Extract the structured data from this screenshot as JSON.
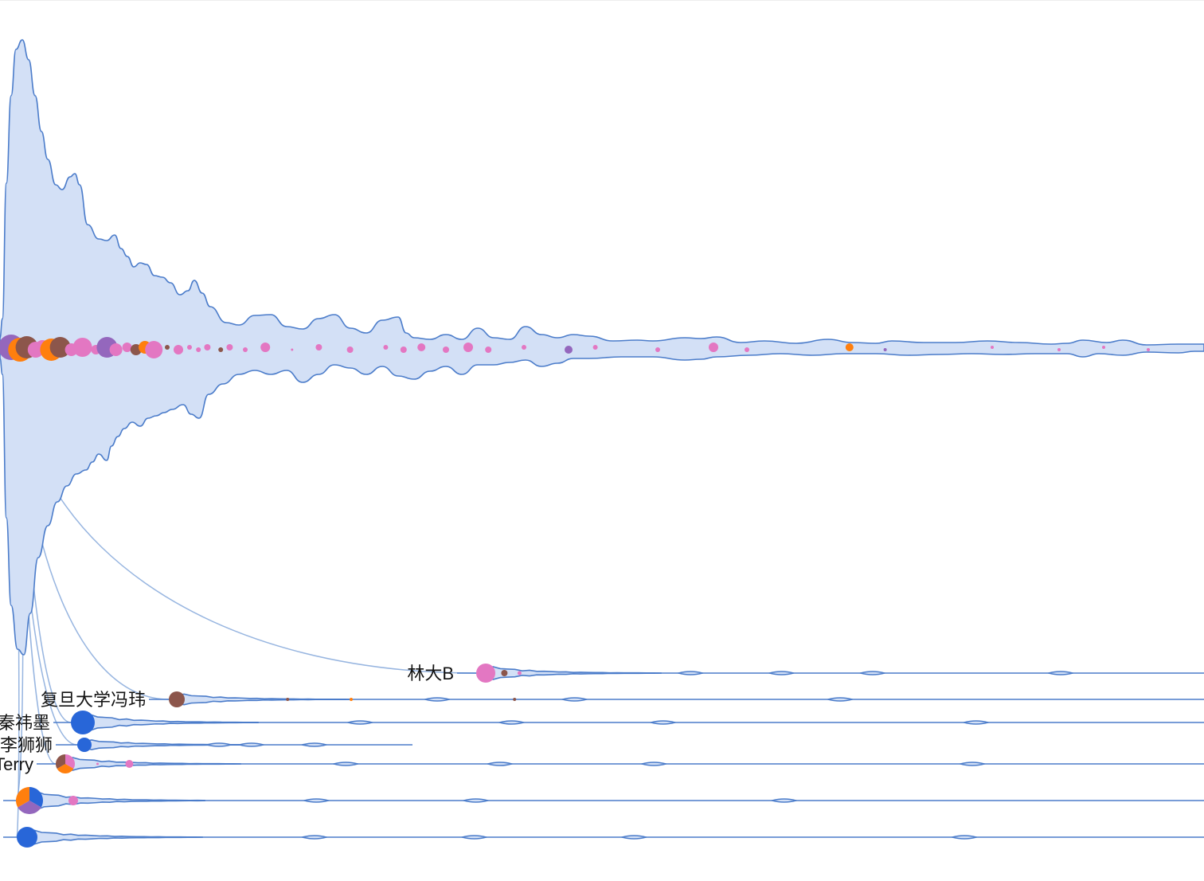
{
  "chart_data": {
    "type": "area",
    "description_free": true,
    "colors": {
      "stream_fill": "#d3e0f6",
      "stream_stroke": "#4b7cca",
      "link": "#7da2d8",
      "blue": "#2866d8",
      "pink": "#e377c2",
      "orange": "#ff7f0e",
      "brown": "#8c564b",
      "purple": "#9467bd"
    },
    "main_stream": {
      "dots": [
        {
          "t": 0,
          "r": 16,
          "c": "purple"
        },
        {
          "t": 4,
          "r": 15,
          "c": "orange"
        },
        {
          "t": 7,
          "r": 14,
          "c": "brown"
        },
        {
          "t": 11,
          "r": 10,
          "c": "pink"
        },
        {
          "t": 14,
          "r": 9,
          "c": "pink"
        },
        {
          "t": 18,
          "r": 14,
          "c": "orange"
        },
        {
          "t": 22,
          "r": 13,
          "c": "brown"
        },
        {
          "t": 27,
          "r": 8,
          "c": "pink"
        },
        {
          "t": 32,
          "r": 12,
          "c": "pink"
        },
        {
          "t": 38,
          "r": 6,
          "c": "pink"
        },
        {
          "t": 43,
          "r": 13,
          "c": "purple"
        },
        {
          "t": 47,
          "r": 8,
          "c": "pink"
        },
        {
          "t": 52,
          "r": 6,
          "c": "pink"
        },
        {
          "t": 56,
          "r": 7,
          "c": "brown"
        },
        {
          "t": 60,
          "r": 8,
          "c": "orange"
        },
        {
          "t": 64,
          "r": 11,
          "c": "pink"
        },
        {
          "t": 70,
          "r": 3,
          "c": "brown"
        },
        {
          "t": 75,
          "r": 6,
          "c": "pink"
        },
        {
          "t": 80,
          "r": 3,
          "c": "pink"
        },
        {
          "t": 84,
          "r": 3,
          "c": "pink"
        },
        {
          "t": 88,
          "r": 4,
          "c": "pink"
        },
        {
          "t": 94,
          "r": 3,
          "c": "brown"
        },
        {
          "t": 98,
          "r": 4,
          "c": "pink"
        },
        {
          "t": 105,
          "r": 3,
          "c": "pink"
        },
        {
          "t": 114,
          "r": 6,
          "c": "pink"
        },
        {
          "t": 126,
          "r": 1.5,
          "c": "pink"
        },
        {
          "t": 138,
          "r": 4,
          "c": "pink"
        },
        {
          "t": 152,
          "r": 4,
          "c": "pink"
        },
        {
          "t": 168,
          "r": 3,
          "c": "pink"
        },
        {
          "t": 176,
          "r": 4,
          "c": "pink"
        },
        {
          "t": 184,
          "r": 5,
          "c": "pink"
        },
        {
          "t": 195,
          "r": 4,
          "c": "pink"
        },
        {
          "t": 205,
          "r": 6,
          "c": "pink"
        },
        {
          "t": 214,
          "r": 4,
          "c": "pink"
        },
        {
          "t": 230,
          "r": 3,
          "c": "pink"
        },
        {
          "t": 250,
          "r": 5,
          "c": "purple"
        },
        {
          "t": 262,
          "r": 3,
          "c": "pink"
        },
        {
          "t": 290,
          "r": 3,
          "c": "pink"
        },
        {
          "t": 315,
          "r": 6,
          "c": "pink"
        },
        {
          "t": 330,
          "r": 3,
          "c": "pink"
        },
        {
          "t": 376,
          "r": 5,
          "c": "orange"
        },
        {
          "t": 392,
          "r": 2,
          "c": "purple"
        },
        {
          "t": 440,
          "r": 2,
          "c": "pink"
        },
        {
          "t": 470,
          "r": 2,
          "c": "pink"
        },
        {
          "t": 490,
          "r": 2,
          "c": "pink"
        },
        {
          "t": 510,
          "r": 2,
          "c": "pink"
        }
      ]
    },
    "sub_streams": [
      {
        "label": "林大B",
        "start_t": 230,
        "end_t": 540,
        "node_r": 12,
        "node_colors": [
          "pink"
        ],
        "dots": [
          {
            "t": 236,
            "r": 4,
            "c": "brown"
          },
          {
            "t": 246,
            "r": 2.5,
            "c": "pink"
          }
        ]
      },
      {
        "label": "复旦大学冯玮",
        "start_t": 78,
        "end_t": 540,
        "node_r": 10,
        "node_colors": [
          "brown"
        ],
        "dots": [
          {
            "t": 146,
            "r": 2,
            "c": "brown"
          },
          {
            "t": 188,
            "r": 2,
            "c": "orange"
          },
          {
            "t": 296,
            "r": 2,
            "c": "brown"
          }
        ]
      },
      {
        "label": "秦祎墨",
        "start_t": 36,
        "end_t": 535,
        "node_r": 15,
        "node_colors": [
          "blue"
        ],
        "dots": []
      },
      {
        "label": "李狮狮",
        "start_t": 37,
        "end_t": 180,
        "node_r": 9,
        "node_colors": [
          "blue"
        ],
        "dots": []
      },
      {
        "label": "Terry",
        "start_t": 29,
        "end_t": 540,
        "node_r": 12,
        "node_colors": [
          "pink",
          "orange",
          "brown"
        ],
        "dots": [
          {
            "t": 65,
            "r": 5,
            "c": "pink"
          },
          {
            "t": 44,
            "r": 1.5,
            "c": "pink"
          }
        ]
      },
      {
        "label": "",
        "start_t": 12,
        "end_t": 540,
        "node_r": 17,
        "node_colors": [
          "blue",
          "purple",
          "orange"
        ],
        "dots": [
          {
            "t": 32,
            "r": 6,
            "c": "pink"
          }
        ]
      },
      {
        "label": "",
        "start_t": 12,
        "end_t": 540,
        "node_r": 13,
        "node_colors": [
          "blue"
        ],
        "dots": []
      }
    ]
  }
}
